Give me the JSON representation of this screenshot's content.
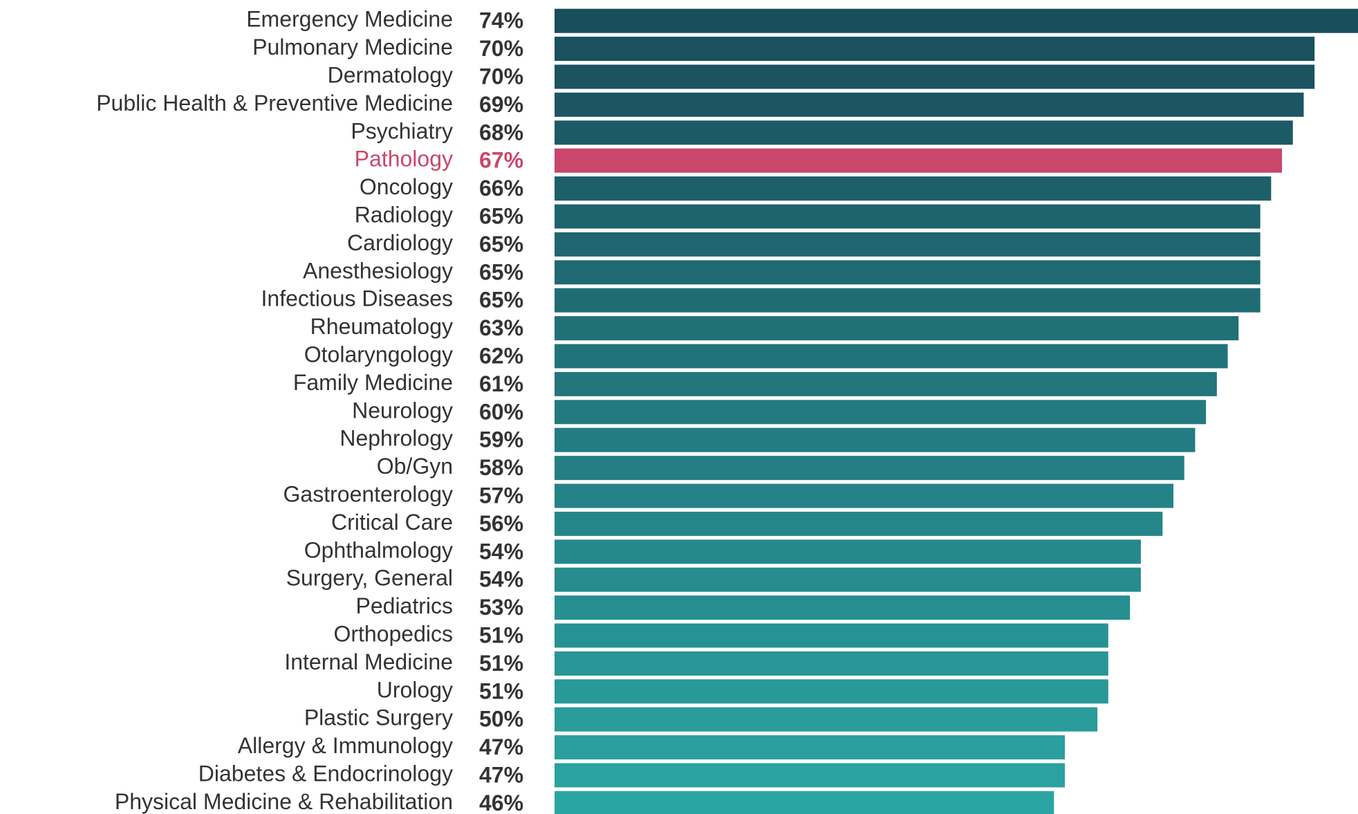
{
  "chart_data": {
    "type": "bar",
    "orientation": "horizontal",
    "categories": [
      "Emergency Medicine",
      "Pulmonary Medicine",
      "Dermatology",
      "Public Health & Preventive Medicine",
      "Psychiatry",
      "Pathology",
      "Oncology",
      "Radiology",
      "Cardiology",
      "Anesthesiology",
      "Infectious Diseases",
      "Rheumatology",
      "Otolaryngology",
      "Family Medicine",
      "Neurology",
      "Nephrology",
      "Ob/Gyn",
      "Gastroenterology",
      "Critical Care",
      "Ophthalmology",
      "Surgery, General",
      "Pediatrics",
      "Orthopedics",
      "Internal Medicine",
      "Urology",
      "Plastic Surgery",
      "Allergy & Immunology",
      "Diabetes & Endocrinology",
      "Physical Medicine & Rehabilitation"
    ],
    "values": [
      74,
      70,
      70,
      69,
      68,
      67,
      66,
      65,
      65,
      65,
      65,
      63,
      62,
      61,
      60,
      59,
      58,
      57,
      56,
      54,
      54,
      53,
      51,
      51,
      51,
      50,
      47,
      47,
      46
    ],
    "value_labels": [
      "74%",
      "70%",
      "70%",
      "69%",
      "68%",
      "67%",
      "66%",
      "65%",
      "65%",
      "65%",
      "65%",
      "63%",
      "62%",
      "61%",
      "60%",
      "59%",
      "58%",
      "57%",
      "56%",
      "54%",
      "54%",
      "53%",
      "51%",
      "51%",
      "51%",
      "50%",
      "47%",
      "47%",
      "46%"
    ],
    "colors": [
      "#1a4d5b",
      "#1b505e",
      "#1b5360",
      "#1c5663",
      "#1c5a65",
      "#c9476b",
      "#1e606a",
      "#1e636d",
      "#1f6670",
      "#1f6972",
      "#206c75",
      "#217077",
      "#21737a",
      "#22767c",
      "#22797f",
      "#237c81",
      "#247f84",
      "#248287",
      "#258689",
      "#25898c",
      "#268c8e",
      "#278f91",
      "#279294",
      "#289596",
      "#289899",
      "#299c9b",
      "#2a9f9e",
      "#2aa2a0",
      "#2ba5a3"
    ],
    "label_color": "#333333",
    "highlight": 5,
    "xlim": [
      0,
      74
    ],
    "grid": false
  }
}
